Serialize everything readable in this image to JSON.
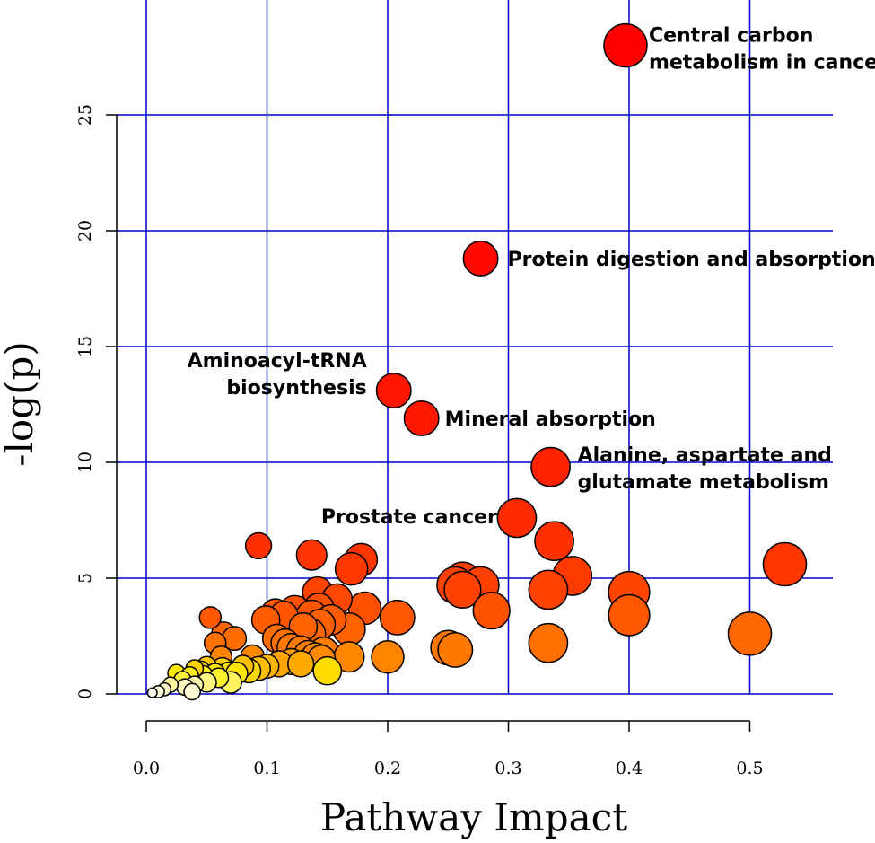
{
  "chart_data": {
    "type": "scatter",
    "title": "",
    "xlabel": "Pathway Impact",
    "ylabel": "-log(p)",
    "xlim": [
      0,
      0.57
    ],
    "ylim": [
      0,
      28
    ],
    "x_ticks": [
      "0.0",
      "0.1",
      "0.2",
      "0.3",
      "0.4",
      "0.5"
    ],
    "y_ticks": [
      "0",
      "5",
      "10",
      "15",
      "20",
      "25"
    ],
    "x_tick_values": [
      0,
      0.1,
      0.2,
      0.3,
      0.4,
      0.5
    ],
    "y_tick_values": [
      0,
      5,
      10,
      15,
      20,
      25
    ],
    "grid": true,
    "grid_color": "#0000cc",
    "color_scale": "p-value: yellow (low) to red (high -log p)",
    "points": [
      {
        "x": 0.397,
        "y": 28.0,
        "size": 1.0,
        "color": "#ff0000"
      },
      {
        "x": 0.277,
        "y": 18.8,
        "size": 0.8,
        "color": "#ff0a00"
      },
      {
        "x": 0.205,
        "y": 13.1,
        "size": 0.8,
        "color": "#ff1500"
      },
      {
        "x": 0.228,
        "y": 11.9,
        "size": 0.8,
        "color": "#ff1800"
      },
      {
        "x": 0.335,
        "y": 9.8,
        "size": 0.9,
        "color": "#ff2200"
      },
      {
        "x": 0.307,
        "y": 7.6,
        "size": 0.9,
        "color": "#ff2a00"
      },
      {
        "x": 0.338,
        "y": 6.6,
        "size": 0.9,
        "color": "#ff3000"
      },
      {
        "x": 0.093,
        "y": 6.4,
        "size": 0.6,
        "color": "#ff3000"
      },
      {
        "x": 0.137,
        "y": 6.0,
        "size": 0.7,
        "color": "#ff3400"
      },
      {
        "x": 0.178,
        "y": 5.8,
        "size": 0.75,
        "color": "#ff3500"
      },
      {
        "x": 0.17,
        "y": 5.4,
        "size": 0.75,
        "color": "#ff3800"
      },
      {
        "x": 0.529,
        "y": 5.6,
        "size": 1.0,
        "color": "#ff3600"
      },
      {
        "x": 0.353,
        "y": 5.1,
        "size": 0.9,
        "color": "#ff3a00"
      },
      {
        "x": 0.262,
        "y": 4.9,
        "size": 0.85,
        "color": "#ff3e00"
      },
      {
        "x": 0.256,
        "y": 4.7,
        "size": 0.85,
        "color": "#ff4000"
      },
      {
        "x": 0.277,
        "y": 4.7,
        "size": 0.85,
        "color": "#ff4000"
      },
      {
        "x": 0.262,
        "y": 4.5,
        "size": 0.85,
        "color": "#ff4200"
      },
      {
        "x": 0.333,
        "y": 4.5,
        "size": 0.9,
        "color": "#ff4200"
      },
      {
        "x": 0.4,
        "y": 4.4,
        "size": 0.95,
        "color": "#ff4400"
      },
      {
        "x": 0.142,
        "y": 4.4,
        "size": 0.7,
        "color": "#ff4400"
      },
      {
        "x": 0.158,
        "y": 4.1,
        "size": 0.7,
        "color": "#ff4800"
      },
      {
        "x": 0.143,
        "y": 3.7,
        "size": 0.7,
        "color": "#ff5000"
      },
      {
        "x": 0.181,
        "y": 3.7,
        "size": 0.75,
        "color": "#ff5000"
      },
      {
        "x": 0.123,
        "y": 3.6,
        "size": 0.7,
        "color": "#ff5200"
      },
      {
        "x": 0.107,
        "y": 3.5,
        "size": 0.65,
        "color": "#ff5400"
      },
      {
        "x": 0.114,
        "y": 3.4,
        "size": 0.65,
        "color": "#ff5500"
      },
      {
        "x": 0.137,
        "y": 3.4,
        "size": 0.7,
        "color": "#ff5600"
      },
      {
        "x": 0.4,
        "y": 3.4,
        "size": 0.95,
        "color": "#ff5600"
      },
      {
        "x": 0.208,
        "y": 3.3,
        "size": 0.8,
        "color": "#ff5800"
      },
      {
        "x": 0.053,
        "y": 3.3,
        "size": 0.5,
        "color": "#ff5a00"
      },
      {
        "x": 0.099,
        "y": 3.2,
        "size": 0.65,
        "color": "#ff5c00"
      },
      {
        "x": 0.153,
        "y": 3.2,
        "size": 0.7,
        "color": "#ff5c00"
      },
      {
        "x": 0.144,
        "y": 3.0,
        "size": 0.7,
        "color": "#ff6000"
      },
      {
        "x": 0.13,
        "y": 2.9,
        "size": 0.65,
        "color": "#ff6200"
      },
      {
        "x": 0.168,
        "y": 2.8,
        "size": 0.75,
        "color": "#ff6400"
      },
      {
        "x": 0.136,
        "y": 2.6,
        "size": 0.7,
        "color": "#ff6600"
      },
      {
        "x": 0.064,
        "y": 2.6,
        "size": 0.55,
        "color": "#ff6600"
      },
      {
        "x": 0.286,
        "y": 3.6,
        "size": 0.85,
        "color": "#ff5200"
      },
      {
        "x": 0.5,
        "y": 2.6,
        "size": 1.0,
        "color": "#ff6800"
      },
      {
        "x": 0.073,
        "y": 2.4,
        "size": 0.55,
        "color": "#ff6c00"
      },
      {
        "x": 0.108,
        "y": 2.4,
        "size": 0.65,
        "color": "#ff6c00"
      },
      {
        "x": 0.115,
        "y": 2.2,
        "size": 0.65,
        "color": "#ff7000"
      },
      {
        "x": 0.333,
        "y": 2.2,
        "size": 0.9,
        "color": "#ff7000"
      },
      {
        "x": 0.057,
        "y": 2.2,
        "size": 0.5,
        "color": "#ff7200"
      },
      {
        "x": 0.12,
        "y": 2.0,
        "size": 0.65,
        "color": "#ff7600"
      },
      {
        "x": 0.25,
        "y": 2.0,
        "size": 0.8,
        "color": "#ff7600"
      },
      {
        "x": 0.256,
        "y": 1.9,
        "size": 0.8,
        "color": "#ff7800"
      },
      {
        "x": 0.128,
        "y": 1.9,
        "size": 0.65,
        "color": "#ff7800"
      },
      {
        "x": 0.147,
        "y": 1.8,
        "size": 0.7,
        "color": "#ff7c00"
      },
      {
        "x": 0.134,
        "y": 1.7,
        "size": 0.65,
        "color": "#ff8000"
      },
      {
        "x": 0.2,
        "y": 1.6,
        "size": 0.75,
        "color": "#ff8400"
      },
      {
        "x": 0.062,
        "y": 1.6,
        "size": 0.5,
        "color": "#ff8400"
      },
      {
        "x": 0.14,
        "y": 1.6,
        "size": 0.65,
        "color": "#ff8400"
      },
      {
        "x": 0.168,
        "y": 1.6,
        "size": 0.7,
        "color": "#ff8600"
      },
      {
        "x": 0.088,
        "y": 1.6,
        "size": 0.55,
        "color": "#ff8800"
      },
      {
        "x": 0.145,
        "y": 1.5,
        "size": 0.65,
        "color": "#ff8a00"
      },
      {
        "x": 0.12,
        "y": 1.4,
        "size": 0.6,
        "color": "#ff9a00"
      },
      {
        "x": 0.11,
        "y": 1.3,
        "size": 0.6,
        "color": "#ffa400"
      },
      {
        "x": 0.128,
        "y": 1.3,
        "size": 0.6,
        "color": "#ffaa00"
      },
      {
        "x": 0.1,
        "y": 1.2,
        "size": 0.55,
        "color": "#ffb400"
      },
      {
        "x": 0.093,
        "y": 1.1,
        "size": 0.55,
        "color": "#ffbe00"
      },
      {
        "x": 0.08,
        "y": 1.2,
        "size": 0.5,
        "color": "#ffc200"
      },
      {
        "x": 0.05,
        "y": 1.2,
        "size": 0.45,
        "color": "#ffc800"
      },
      {
        "x": 0.04,
        "y": 1.1,
        "size": 0.4,
        "color": "#ffd000"
      },
      {
        "x": 0.063,
        "y": 1.1,
        "size": 0.5,
        "color": "#ffd400"
      },
      {
        "x": 0.085,
        "y": 1.0,
        "size": 0.55,
        "color": "#ffd800"
      },
      {
        "x": 0.15,
        "y": 1.0,
        "size": 0.65,
        "color": "#ffdc00"
      },
      {
        "x": 0.045,
        "y": 1.0,
        "size": 0.45,
        "color": "#ffdc00"
      },
      {
        "x": 0.068,
        "y": 0.9,
        "size": 0.5,
        "color": "#ffe000"
      },
      {
        "x": 0.075,
        "y": 0.9,
        "size": 0.5,
        "color": "#ffe400"
      },
      {
        "x": 0.057,
        "y": 0.9,
        "size": 0.45,
        "color": "#ffe600"
      },
      {
        "x": 0.025,
        "y": 0.9,
        "size": 0.4,
        "color": "#ffea00"
      },
      {
        "x": 0.036,
        "y": 0.8,
        "size": 0.4,
        "color": "#ffee10"
      },
      {
        "x": 0.047,
        "y": 0.8,
        "size": 0.45,
        "color": "#fff020"
      },
      {
        "x": 0.06,
        "y": 0.7,
        "size": 0.45,
        "color": "#fff230"
      },
      {
        "x": 0.03,
        "y": 0.6,
        "size": 0.4,
        "color": "#fff440"
      },
      {
        "x": 0.07,
        "y": 0.5,
        "size": 0.5,
        "color": "#fff460"
      },
      {
        "x": 0.05,
        "y": 0.5,
        "size": 0.45,
        "color": "#fff580"
      },
      {
        "x": 0.02,
        "y": 0.4,
        "size": 0.35,
        "color": "#fff7a0"
      },
      {
        "x": 0.04,
        "y": 0.4,
        "size": 0.4,
        "color": "#fff8b0"
      },
      {
        "x": 0.032,
        "y": 0.3,
        "size": 0.38,
        "color": "#fff9c0"
      },
      {
        "x": 0.015,
        "y": 0.2,
        "size": 0.3,
        "color": "#fffad0"
      },
      {
        "x": 0.038,
        "y": 0.1,
        "size": 0.38,
        "color": "#fffbd8"
      },
      {
        "x": 0.01,
        "y": 0.1,
        "size": 0.28,
        "color": "#fffce0"
      },
      {
        "x": 0.005,
        "y": 0.05,
        "size": 0.22,
        "color": "#fffdf0"
      }
    ],
    "annotations": [
      {
        "lines": [
          "Central carbon",
          "metabolism in cancer"
        ],
        "x": 0.397,
        "y": 28.0,
        "anchor": "right-of-point"
      },
      {
        "lines": [
          "Protein digestion and absorption"
        ],
        "x": 0.277,
        "y": 18.8,
        "anchor": "right-of-point"
      },
      {
        "lines": [
          "Aminoacyl-tRNA",
          "biosynthesis"
        ],
        "x": 0.205,
        "y": 13.1,
        "anchor": "left-of-point"
      },
      {
        "lines": [
          "Mineral absorption"
        ],
        "x": 0.228,
        "y": 11.9,
        "anchor": "right-of-point"
      },
      {
        "lines": [
          "Alanine, aspartate and",
          "glutamate metabolism"
        ],
        "x": 0.335,
        "y": 9.8,
        "anchor": "right-of-point"
      },
      {
        "lines": [
          "Prostate cancer"
        ],
        "x": 0.307,
        "y": 7.6,
        "anchor": "left-of-point"
      }
    ]
  }
}
